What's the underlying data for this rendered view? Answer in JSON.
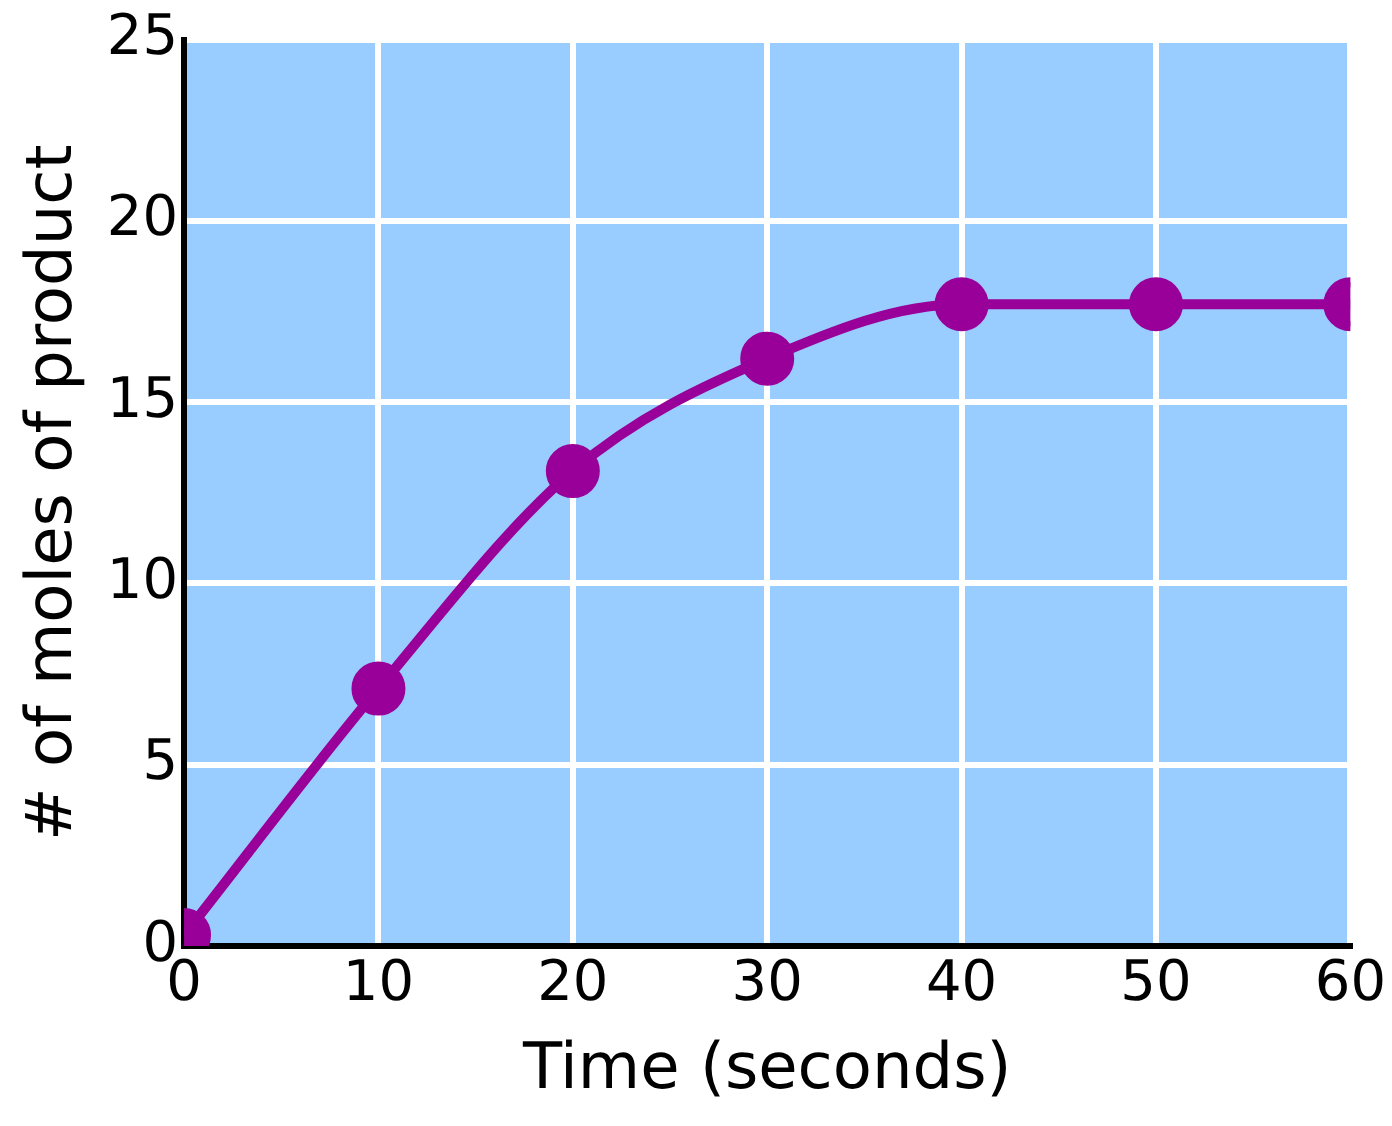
{
  "chart_data": {
    "type": "line",
    "xlabel": "Time (seconds)",
    "ylabel": "# of moles of product",
    "x": [
      0,
      10,
      20,
      30,
      40,
      50,
      60
    ],
    "series": [
      {
        "color": "#990099",
        "values": [
          0.3,
          7.1,
          13.1,
          16.2,
          17.7,
          17.7,
          17.7
        ]
      }
    ],
    "xlim": [
      0,
      60
    ],
    "xticks": [
      0,
      10,
      20,
      30,
      40,
      50,
      60
    ],
    "ylim": [
      0,
      25
    ],
    "yticks": [
      0,
      5,
      10,
      15,
      20,
      25
    ],
    "grid": true,
    "legend": false,
    "marker": "circle",
    "line_style": "solid"
  }
}
